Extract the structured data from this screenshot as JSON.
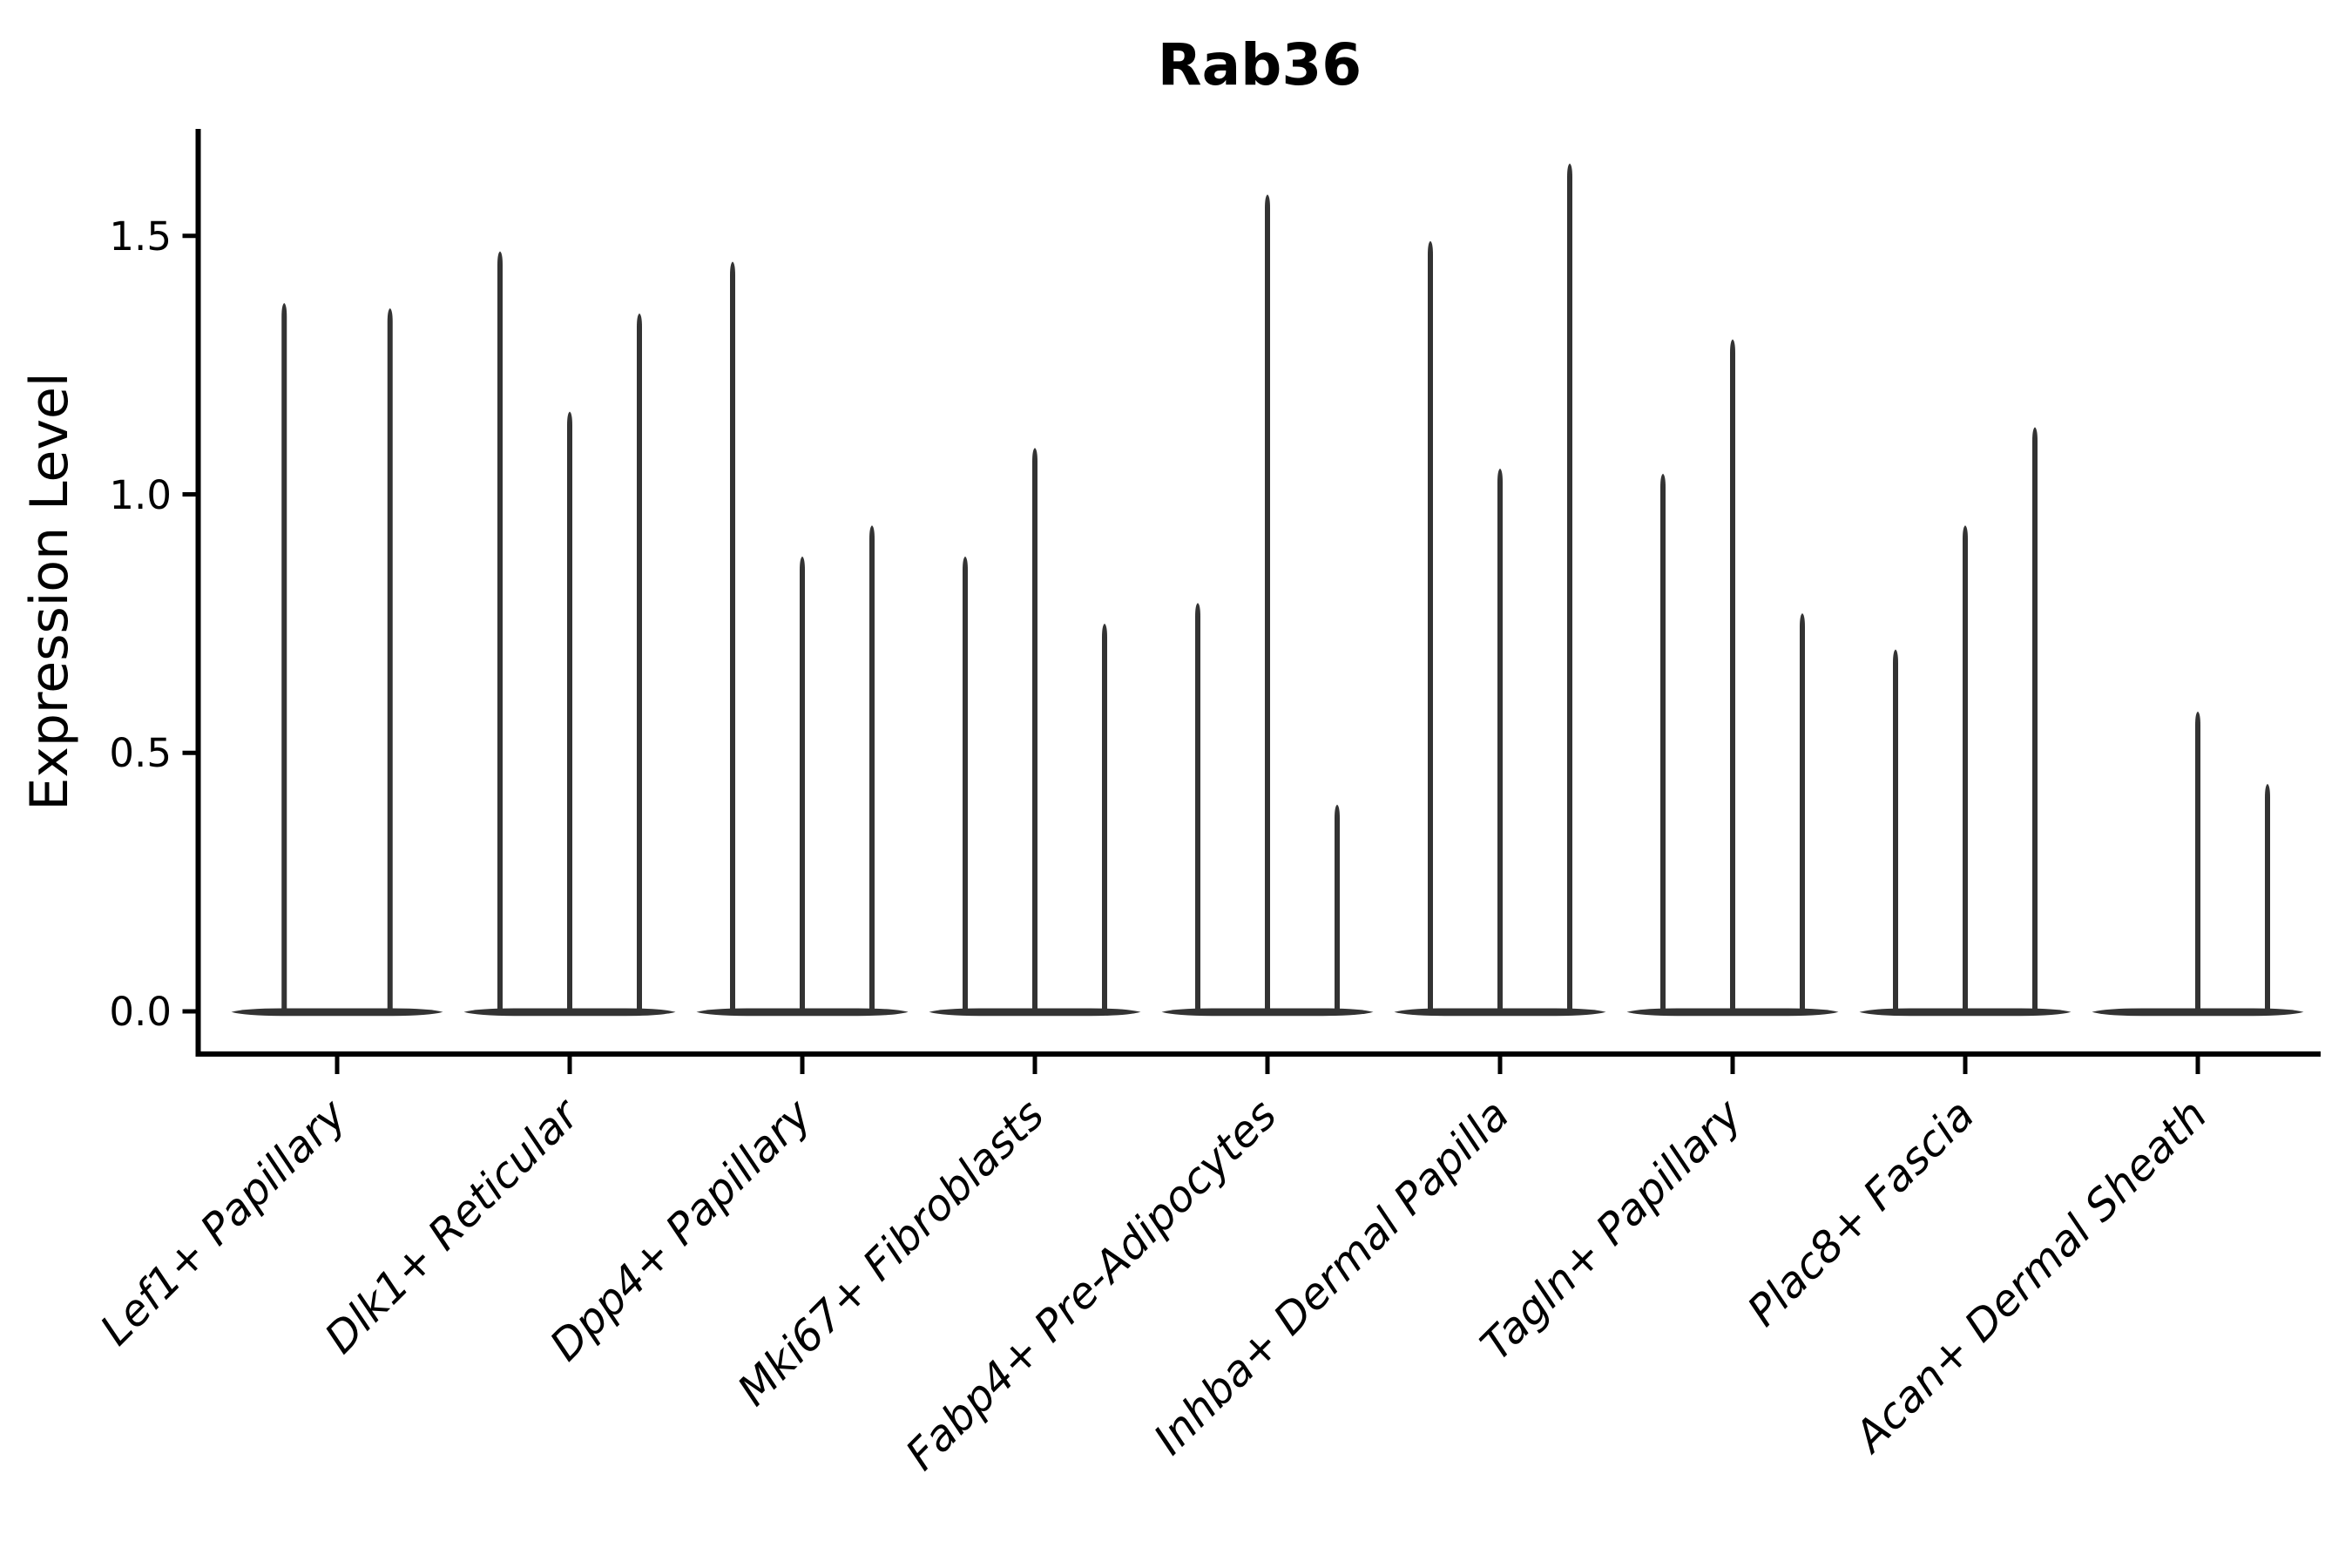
{
  "title": "Rab36",
  "y_axis": {
    "label": "Expression Level",
    "ticks": [
      "0.0",
      "0.5",
      "1.0",
      "1.5"
    ]
  },
  "chart_data": {
    "type": "violin",
    "title": "Rab36",
    "xlabel": "",
    "ylabel": "Expression Level",
    "ylim": [
      -0.08,
      1.71
    ],
    "yticks": [
      0.0,
      0.5,
      1.0,
      1.5
    ],
    "grid": false,
    "legend": "none",
    "categories": [
      "Lef1+ Papillary",
      "Dlk1+ Reticular",
      "Dpp4+ Papillary",
      "Mki67+ Fibroblasts",
      "Fabp4+ Pre-Adipocytes",
      "Inhba+ Dermal Papilla",
      "Tagln+ Papillary",
      "Plac8+ Fascia",
      "Acan+ Dermal Sheath"
    ],
    "series": [
      {
        "name": "violin-1",
        "values": [
          1.37,
          1.47,
          1.45,
          0.88,
          0.79,
          1.49,
          1.04,
          0.7,
          0.0
        ]
      },
      {
        "name": "violin-2",
        "values": [
          null,
          1.16,
          0.88,
          1.09,
          1.58,
          1.05,
          1.3,
          0.94,
          0.58
        ]
      },
      {
        "name": "violin-3",
        "values": [
          1.36,
          1.35,
          0.94,
          0.75,
          0.4,
          1.64,
          0.77,
          1.13,
          0.44
        ]
      }
    ],
    "value_semantics": "max expression level reached by each narrow needle violin; 0 = flat violin at baseline; null = violin absent",
    "violin_color": "#333333",
    "spine_color": "#000000",
    "background": "#ffffff"
  }
}
